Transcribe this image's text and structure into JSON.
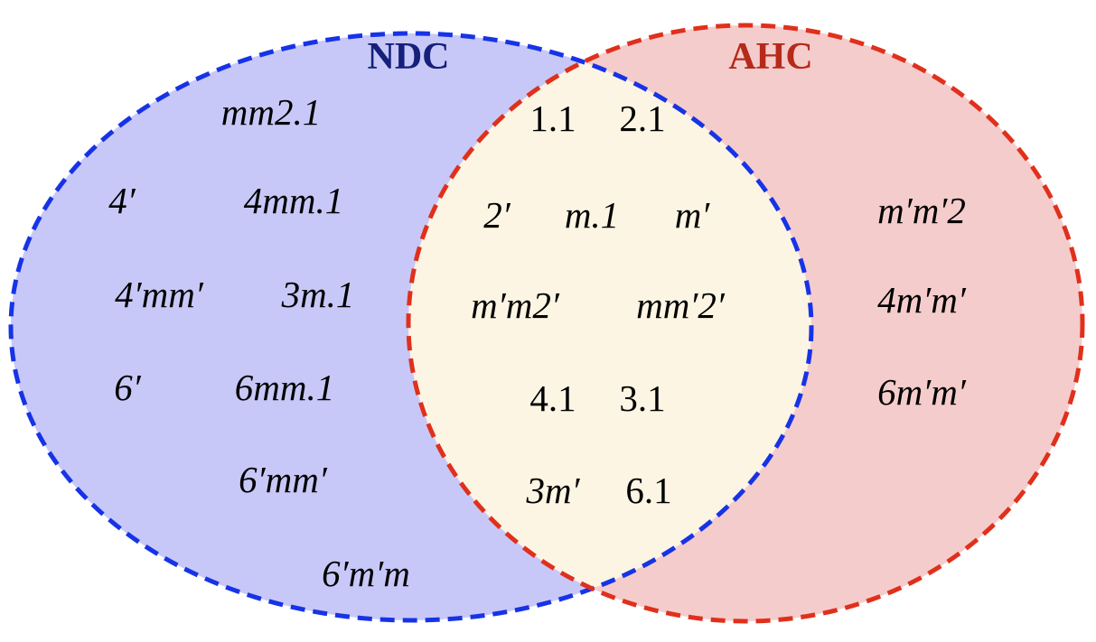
{
  "colors": {
    "ndc_fill": "#c8c8f8",
    "ndc_stroke": "#1733e6",
    "ndc_title": "#15207a",
    "ahc_fill": "#f5cccc",
    "ahc_stroke": "#e0301c",
    "ahc_title": "#b52a1a",
    "overlap_fill": "#fcf5e3"
  },
  "sets": {
    "ndc": {
      "title": "NDC",
      "items": [
        "mm2.1",
        "4′",
        "4mm.1",
        "4′mm′",
        "3m.1",
        "6′",
        "6mm.1",
        "6′mm′",
        "6′m′m"
      ]
    },
    "both": {
      "items": [
        "1.1",
        "2.1",
        "2′",
        "m.1",
        "m′",
        "m′m2′",
        "mm′2′",
        "4.1",
        "3.1",
        "3m′",
        "6.1"
      ]
    },
    "ahc": {
      "title": "AHC",
      "items": [
        "m′m′2",
        "4m′m′",
        "6m′m′"
      ]
    }
  }
}
